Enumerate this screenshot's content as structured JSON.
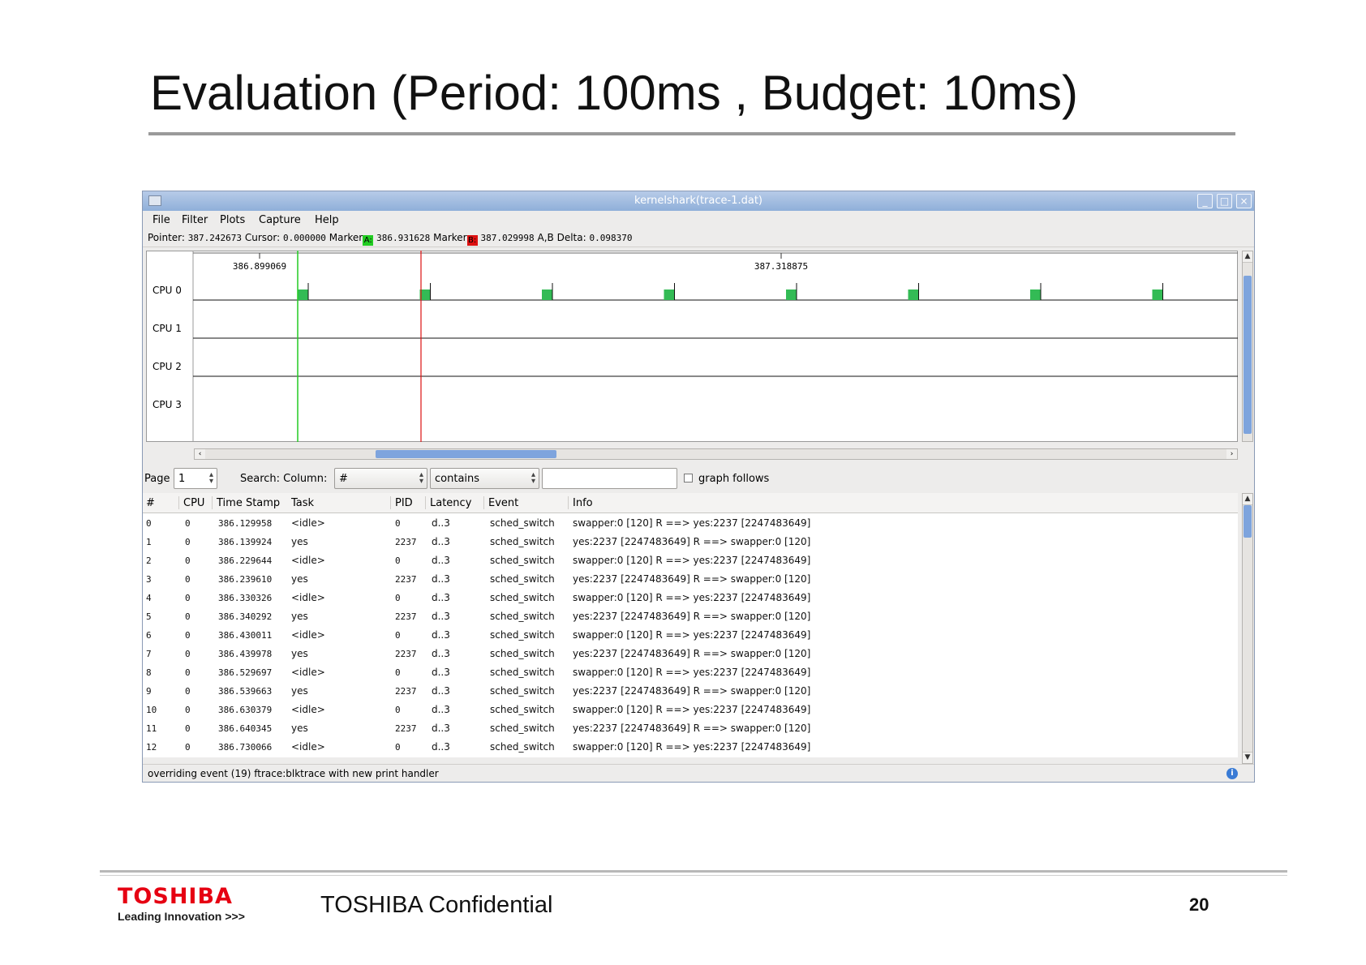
{
  "slide": {
    "title": "Evaluation (Period: 100ms , Budget: 10ms)"
  },
  "window": {
    "title": "kernelshark(trace-1.dat)",
    "controls": [
      "minimize",
      "maximize",
      "close"
    ]
  },
  "menu": [
    "File",
    "Filter",
    "Plots",
    "Capture",
    "Help"
  ],
  "info": {
    "pointer_label": "Pointer:",
    "pointer": "387.242673",
    "cursor_label": "Cursor:",
    "cursor": "0.000000",
    "marker_a_label": "Marker",
    "marker_a_tag": "A:",
    "marker_a": "386.931628",
    "marker_b_label": "Marker",
    "marker_b_tag": "B:",
    "marker_b": "387.029998",
    "delta_label": "A,B Delta:",
    "delta": "0.098370",
    "marker_a_color": "#22cc22",
    "marker_b_color": "#dd1111"
  },
  "graph": {
    "time_labels": [
      "386.899069",
      "387.318875"
    ],
    "cpus": [
      "CPU 0",
      "CPU 1",
      "CPU 2",
      "CPU 3"
    ],
    "cpu0_event_count": 8,
    "event_color": "#33bb55"
  },
  "search": {
    "page_label": "Page",
    "page_value": "1",
    "search_label": "Search: Column:",
    "column_value": "#",
    "match_value": "contains",
    "query_value": "",
    "graph_follows_label": "graph follows"
  },
  "table": {
    "columns": [
      "#",
      "CPU",
      "Time Stamp",
      "Task",
      "PID",
      "Latency",
      "Event",
      "Info"
    ],
    "rows": [
      [
        "0",
        "0",
        "386.129958",
        "<idle>",
        "0",
        "d..3",
        "sched_switch",
        "swapper:0 [120] R ==> yes:2237 [2247483649]"
      ],
      [
        "1",
        "0",
        "386.139924",
        "yes",
        "2237",
        "d..3",
        "sched_switch",
        "yes:2237 [2247483649] R ==> swapper:0 [120]"
      ],
      [
        "2",
        "0",
        "386.229644",
        "<idle>",
        "0",
        "d..3",
        "sched_switch",
        "swapper:0 [120] R ==> yes:2237 [2247483649]"
      ],
      [
        "3",
        "0",
        "386.239610",
        "yes",
        "2237",
        "d..3",
        "sched_switch",
        "yes:2237 [2247483649] R ==> swapper:0 [120]"
      ],
      [
        "4",
        "0",
        "386.330326",
        "<idle>",
        "0",
        "d..3",
        "sched_switch",
        "swapper:0 [120] R ==> yes:2237 [2247483649]"
      ],
      [
        "5",
        "0",
        "386.340292",
        "yes",
        "2237",
        "d..3",
        "sched_switch",
        "yes:2237 [2247483649] R ==> swapper:0 [120]"
      ],
      [
        "6",
        "0",
        "386.430011",
        "<idle>",
        "0",
        "d..3",
        "sched_switch",
        "swapper:0 [120] R ==> yes:2237 [2247483649]"
      ],
      [
        "7",
        "0",
        "386.439978",
        "yes",
        "2237",
        "d..3",
        "sched_switch",
        "yes:2237 [2247483649] R ==> swapper:0 [120]"
      ],
      [
        "8",
        "0",
        "386.529697",
        "<idle>",
        "0",
        "d..3",
        "sched_switch",
        "swapper:0 [120] R ==> yes:2237 [2247483649]"
      ],
      [
        "9",
        "0",
        "386.539663",
        "yes",
        "2237",
        "d..3",
        "sched_switch",
        "yes:2237 [2247483649] R ==> swapper:0 [120]"
      ],
      [
        "10",
        "0",
        "386.630379",
        "<idle>",
        "0",
        "d..3",
        "sched_switch",
        "swapper:0 [120] R ==> yes:2237 [2247483649]"
      ],
      [
        "11",
        "0",
        "386.640345",
        "yes",
        "2237",
        "d..3",
        "sched_switch",
        "yes:2237 [2247483649] R ==> swapper:0 [120]"
      ],
      [
        "12",
        "0",
        "386.730066",
        "<idle>",
        "0",
        "d..3",
        "sched_switch",
        "swapper:0 [120] R ==> yes:2237 [2247483649]"
      ]
    ]
  },
  "status": {
    "message": "overriding event (19) ftrace:blktrace with new print handler"
  },
  "footer": {
    "logo": "TOSHIBA",
    "tagline": "Leading Innovation",
    "tagline_chevrons": ">>>",
    "confidential": "TOSHIBA Confidential",
    "page_number": "20",
    "logo_color": "#e60012"
  }
}
